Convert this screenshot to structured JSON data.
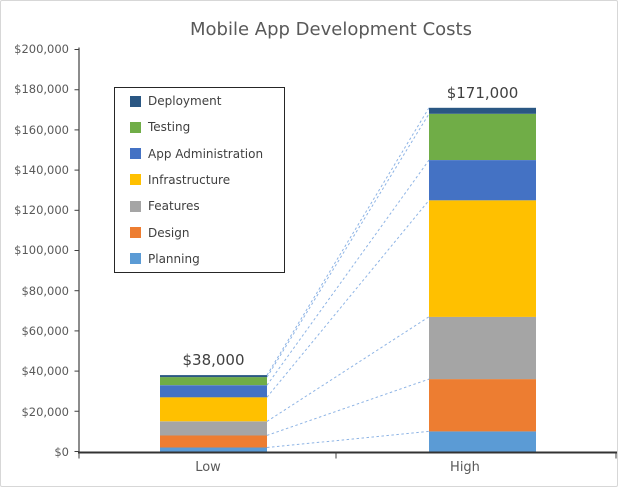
{
  "chart_data": {
    "type": "bar",
    "stacked": true,
    "title": "Mobile App Development Costs",
    "categories": [
      "Low",
      "High"
    ],
    "series": [
      {
        "name": "Planning",
        "color": "#5B9BD5",
        "values": [
          2000,
          10000
        ]
      },
      {
        "name": "Design",
        "color": "#ED7D31",
        "values": [
          6000,
          26000
        ]
      },
      {
        "name": "Features",
        "color": "#A5A5A5",
        "values": [
          7000,
          31000
        ]
      },
      {
        "name": "Infrastructure",
        "color": "#FFC000",
        "values": [
          12000,
          58000
        ]
      },
      {
        "name": "App Administration",
        "color": "#4472C4",
        "values": [
          6000,
          20000
        ]
      },
      {
        "name": "Testing",
        "color": "#70AD47",
        "values": [
          4000,
          23000
        ]
      },
      {
        "name": "Deployment",
        "color": "#2A5783",
        "values": [
          1000,
          3000
        ]
      }
    ],
    "totals": {
      "values": [
        38000,
        171000
      ],
      "labels": [
        "$38,000",
        "$171,000"
      ]
    },
    "y_axis": {
      "min": 0,
      "max": 200000,
      "step": 20000,
      "tick_labels": [
        "$200,000",
        "$180,000",
        "$160,000",
        "$140,000",
        "$120,000",
        "$100,000",
        "$80,000",
        "$60,000",
        "$40,000",
        "$20,000",
        "$0"
      ]
    },
    "legend": {
      "position": "inside-top-left",
      "order_top_to_bottom": [
        "Deployment",
        "Testing",
        "App Administration",
        "Infrastructure",
        "Features",
        "Design",
        "Planning"
      ]
    },
    "connectors": {
      "style": "dashed",
      "color": "#8EB4E5"
    },
    "grid": false
  }
}
